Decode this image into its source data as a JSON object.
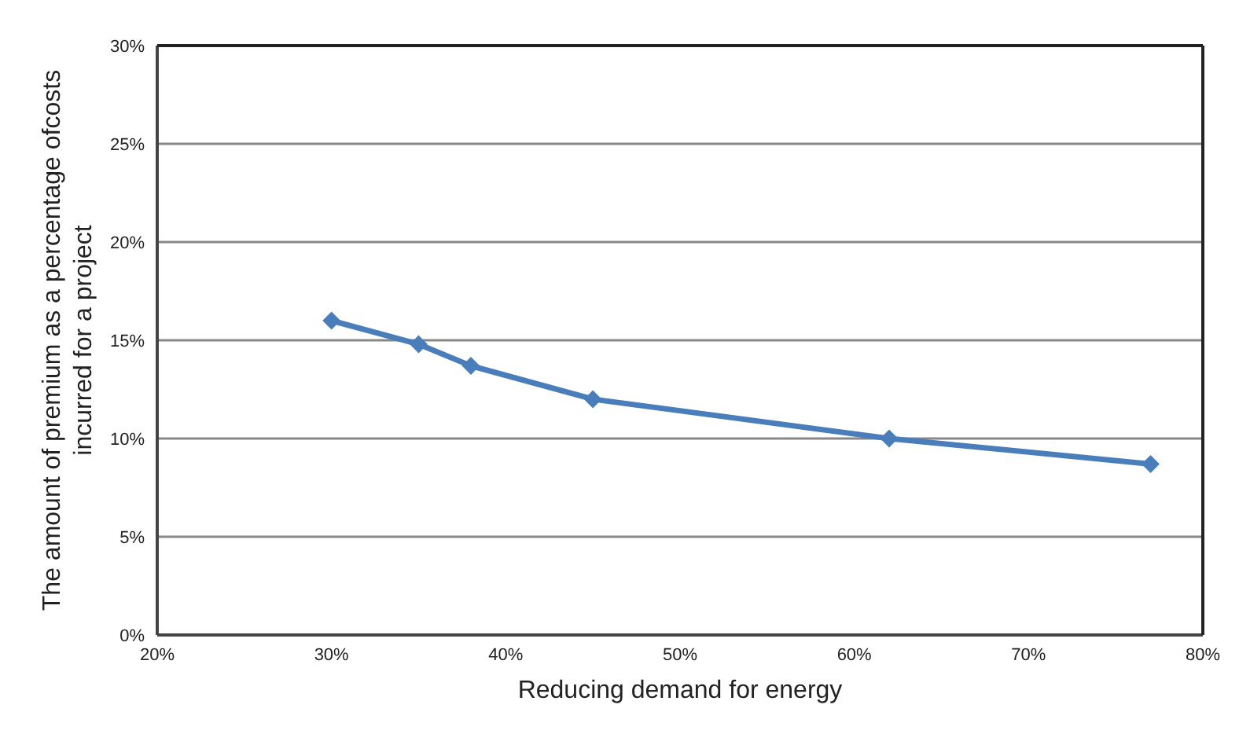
{
  "chart_data": {
    "type": "line",
    "xlabel": "Reducing demand for energy",
    "ylabel": "The amount of premium as a percentage ofcosts incurred for a project",
    "x": [
      30,
      35,
      38,
      45,
      62,
      77
    ],
    "series": [
      {
        "color": "#4a7ebb",
        "values": [
          16,
          14.8,
          13.7,
          12,
          10,
          8.7
        ]
      }
    ],
    "xlim": [
      20,
      80
    ],
    "xticks": [
      {
        "value": 20,
        "label": "20%"
      },
      {
        "value": 30,
        "label": "30%"
      },
      {
        "value": 40,
        "label": "40%"
      },
      {
        "value": 50,
        "label": "50%"
      },
      {
        "value": 60,
        "label": "60%"
      },
      {
        "value": 70,
        "label": "70%"
      },
      {
        "value": 80,
        "label": "80%"
      }
    ],
    "ylim": [
      0,
      30
    ],
    "yticks": [
      {
        "value": 0,
        "label": "0%"
      },
      {
        "value": 5,
        "label": "5%"
      },
      {
        "value": 10,
        "label": "10%"
      },
      {
        "value": 15,
        "label": "15%"
      },
      {
        "value": 20,
        "label": "20%"
      },
      {
        "value": 25,
        "label": "25%"
      },
      {
        "value": 30,
        "label": "30%"
      }
    ],
    "grid": "y",
    "marker": "diamond",
    "line_style": "solid",
    "legend": false
  }
}
